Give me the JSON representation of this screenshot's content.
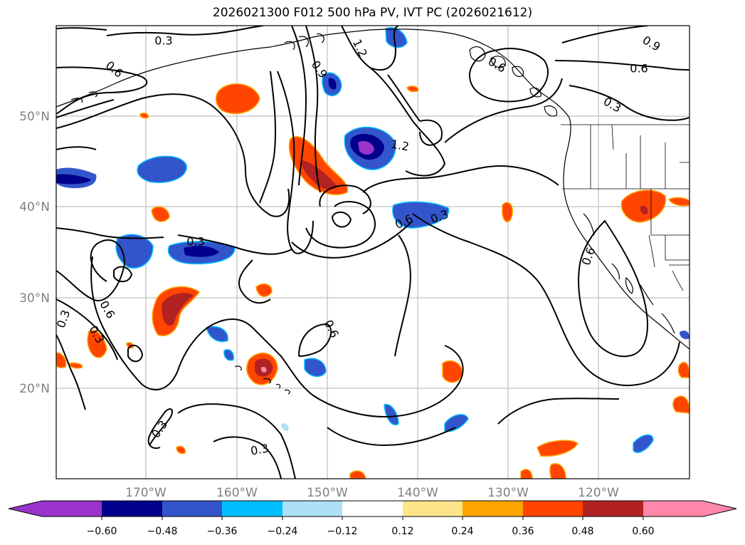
{
  "title": "2026021300 F012 500 hPa PV, IVT PC (2026021612)",
  "lat_labels": [
    "50°N",
    "40°N",
    "30°N",
    "20°N"
  ],
  "lon_labels": [
    "170°W",
    "160°W",
    "150°W",
    "140°W",
    "130°W",
    "120°W"
  ],
  "colorbar": {
    "tick_labels": [
      "−0.60",
      "−0.48",
      "−0.36",
      "−0.24",
      "−0.12",
      "0.12",
      "0.24",
      "0.36",
      "0.48",
      "0.60"
    ],
    "colors": [
      "#9933cc",
      "#00008b",
      "#3355cc",
      "#00bfff",
      "#aee0f8",
      "#ffffff",
      "#fde68a",
      "#ffa500",
      "#ff4500",
      "#b22222",
      "#ff88aa"
    ]
  },
  "contour_labels": [
    "0.3",
    "0.6",
    "0.9",
    "1.2",
    "0.6",
    "0.9",
    "0.6",
    "0.3",
    "1.2",
    "0.3",
    "0.6",
    "0.3",
    "0.6",
    "0.3",
    "0.6",
    "0.3",
    "0.3",
    "0.3",
    "0.6"
  ]
}
